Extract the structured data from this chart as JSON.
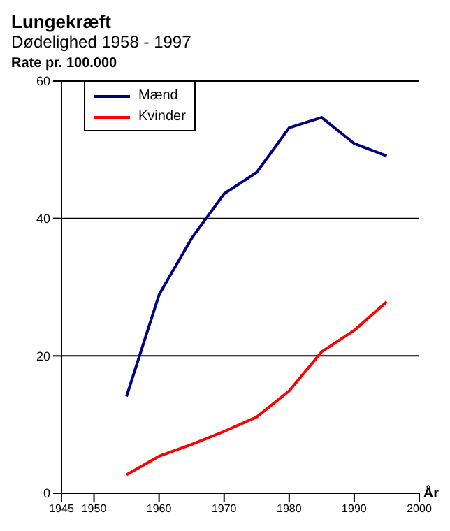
{
  "chart_data": {
    "type": "line",
    "title": "Lungekræft",
    "subtitle": "Dødelighed 1958 - 1997",
    "ylabel": "Rate pr. 100.000",
    "xlabel": "År",
    "x": [
      1955,
      1960,
      1965,
      1970,
      1975,
      1980,
      1985,
      1990,
      1995
    ],
    "series": [
      {
        "name": "Mænd",
        "color": "#000080",
        "values": [
          14.1,
          28.9,
          37.1,
          43.6,
          46.7,
          53.2,
          54.7,
          50.9,
          49.1
        ]
      },
      {
        "name": "Kvinder",
        "color": "#ff0000",
        "values": [
          2.7,
          5.4,
          7.1,
          9.0,
          11.1,
          14.9,
          20.6,
          23.7,
          27.9
        ]
      }
    ],
    "xlim": [
      1945,
      2000
    ],
    "xticks": [
      1945,
      1950,
      1960,
      1970,
      1980,
      1990,
      2000
    ],
    "ylim": [
      0,
      60
    ],
    "yticks": [
      0,
      20,
      40,
      60
    ],
    "grid": "y",
    "legend": "top left",
    "marker": "none",
    "line_style": "solid"
  }
}
